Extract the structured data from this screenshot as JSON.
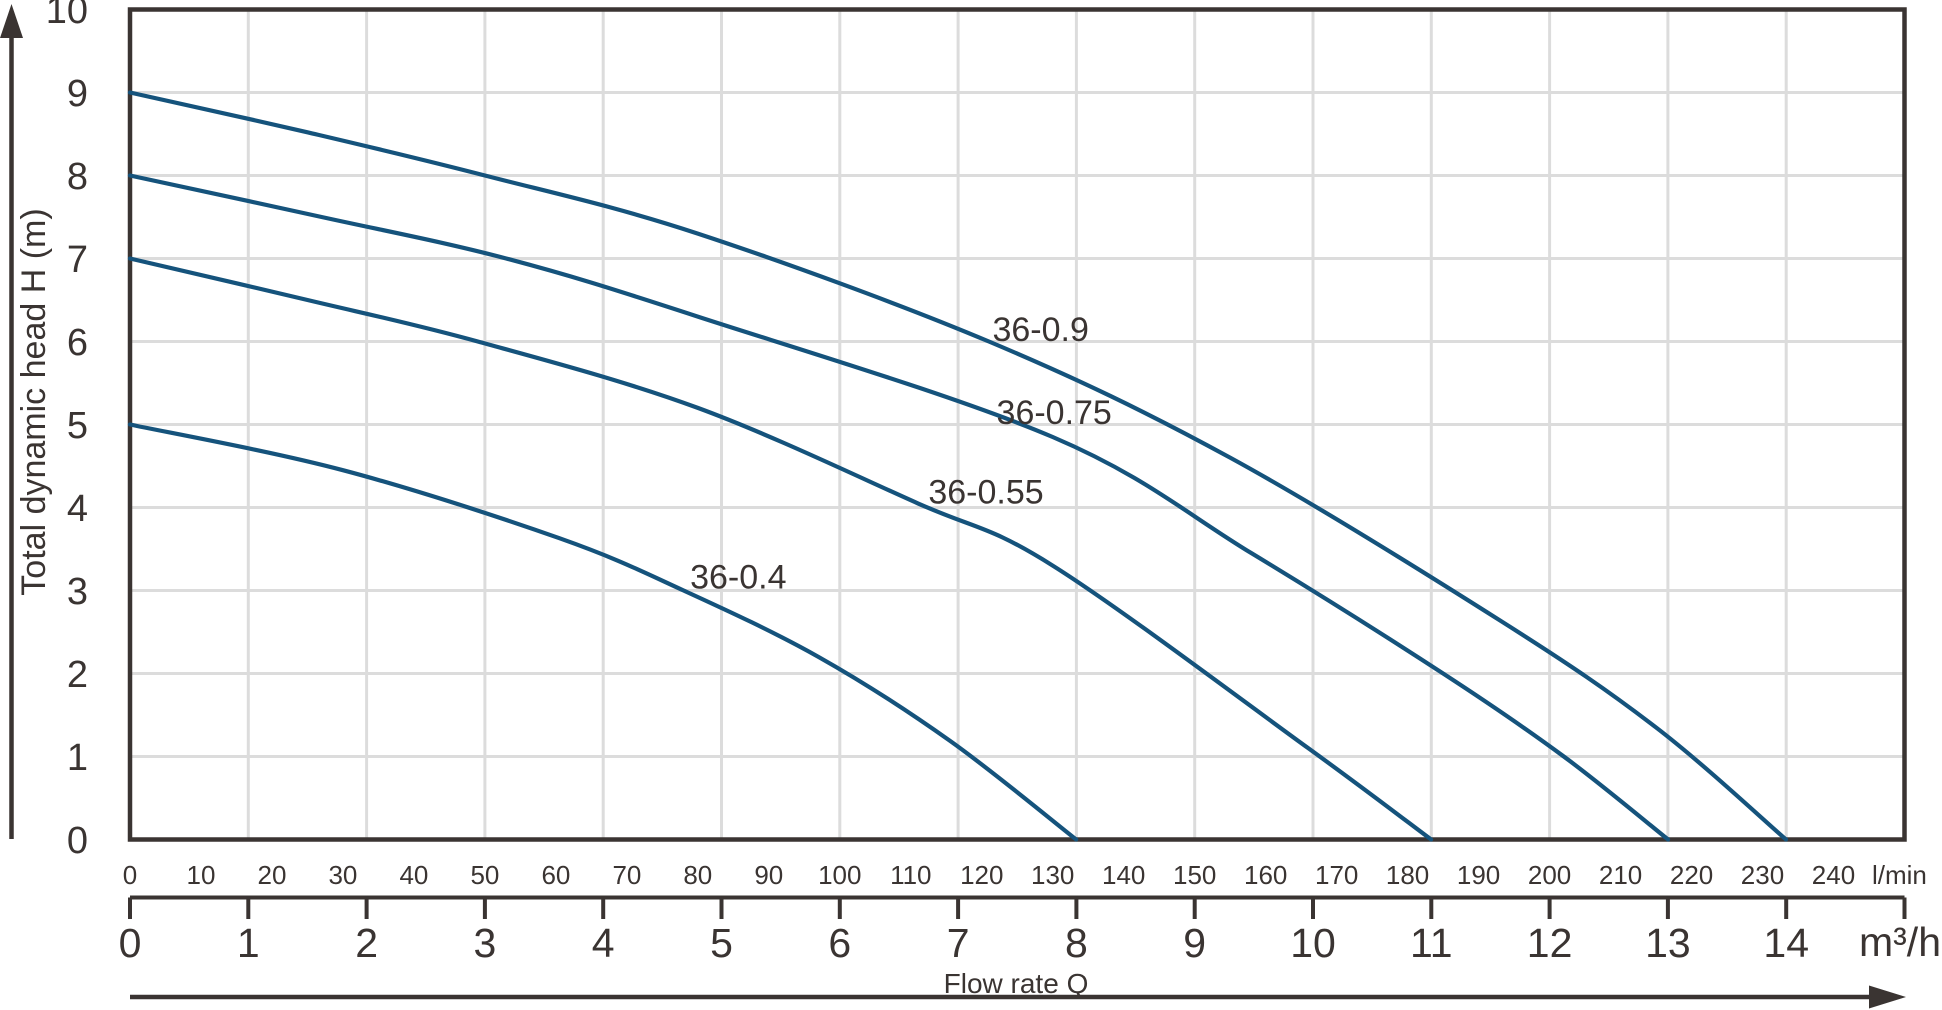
{
  "chart_data": {
    "type": "line",
    "description": "Pump performance curves: total dynamic head versus flow rate for four pump models",
    "title": "",
    "ylabel": "Total dynamic head H (m)",
    "xlabel": "Flow rate Q",
    "ylim": [
      0,
      10
    ],
    "xlim_lmin": [
      0,
      250
    ],
    "grid": "both",
    "legend_position": "inline-curve-labels",
    "y_ticks": [
      0,
      1,
      2,
      3,
      4,
      5,
      6,
      7,
      8,
      9,
      10
    ],
    "x_primary": {
      "unit": "l/min",
      "ticks": [
        0,
        10,
        20,
        30,
        40,
        50,
        60,
        70,
        80,
        90,
        100,
        110,
        120,
        130,
        140,
        150,
        160,
        170,
        180,
        190,
        200,
        210,
        220,
        230,
        240
      ]
    },
    "x_secondary": {
      "unit": "m³/h",
      "ticks": [
        0,
        1,
        2,
        3,
        4,
        5,
        6,
        7,
        8,
        9,
        10,
        11,
        12,
        13,
        14
      ],
      "lmin_per_unit": 16.6667,
      "ruler_end_units": 15
    },
    "series": [
      {
        "name": "36-0.9",
        "shutoff_head_m": 9,
        "max_flow_lmin": 233.3,
        "max_flow_m3h": 14,
        "points_lmin_m": [
          [
            0,
            9
          ],
          [
            25,
            8.52
          ],
          [
            50,
            8.0
          ],
          [
            80,
            7.3
          ],
          [
            121,
            6.0
          ],
          [
            155,
            4.6
          ],
          [
            193,
            2.64
          ],
          [
            215,
            1.35
          ],
          [
            233.3,
            0
          ]
        ],
        "label_pos_lmin_m": [
          128.3,
          6.15
        ]
      },
      {
        "name": "36-0.75",
        "shutoff_head_m": 8,
        "max_flow_lmin": 216.7,
        "max_flow_m3h": 13,
        "points_lmin_m": [
          [
            0,
            8
          ],
          [
            27,
            7.5
          ],
          [
            53,
            7.0
          ],
          [
            80,
            6.3
          ],
          [
            130,
            4.85
          ],
          [
            158,
            3.45
          ],
          [
            185,
            2.0
          ],
          [
            202,
            1.0
          ],
          [
            216.7,
            0
          ]
        ],
        "label_pos_lmin_m": [
          130.2,
          5.15
        ]
      },
      {
        "name": "36-0.55",
        "shutoff_head_m": 7,
        "max_flow_lmin": 183.3,
        "max_flow_m3h": 11,
        "points_lmin_m": [
          [
            0,
            7
          ],
          [
            25,
            6.5
          ],
          [
            49,
            6.0
          ],
          [
            80,
            5.2
          ],
          [
            111,
            4.05
          ],
          [
            130,
            3.3
          ],
          [
            166,
            1.1
          ],
          [
            183.3,
            0
          ]
        ],
        "label_pos_lmin_m": [
          120.6,
          4.19
        ]
      },
      {
        "name": "36-0.4",
        "shutoff_head_m": 5,
        "max_flow_lmin": 133.3,
        "max_flow_m3h": 8,
        "points_lmin_m": [
          [
            0,
            5
          ],
          [
            30,
            4.45
          ],
          [
            60.5,
            3.63
          ],
          [
            78,
            3.0
          ],
          [
            97,
            2.2
          ],
          [
            115.5,
            1.19
          ],
          [
            133.3,
            0
          ]
        ],
        "label_pos_lmin_m": [
          85.7,
          3.17
        ]
      }
    ],
    "colors": {
      "curve": "#15537c",
      "axis": "#3a3432",
      "grid": "#dcdcdc",
      "background": "#ffffff"
    }
  }
}
